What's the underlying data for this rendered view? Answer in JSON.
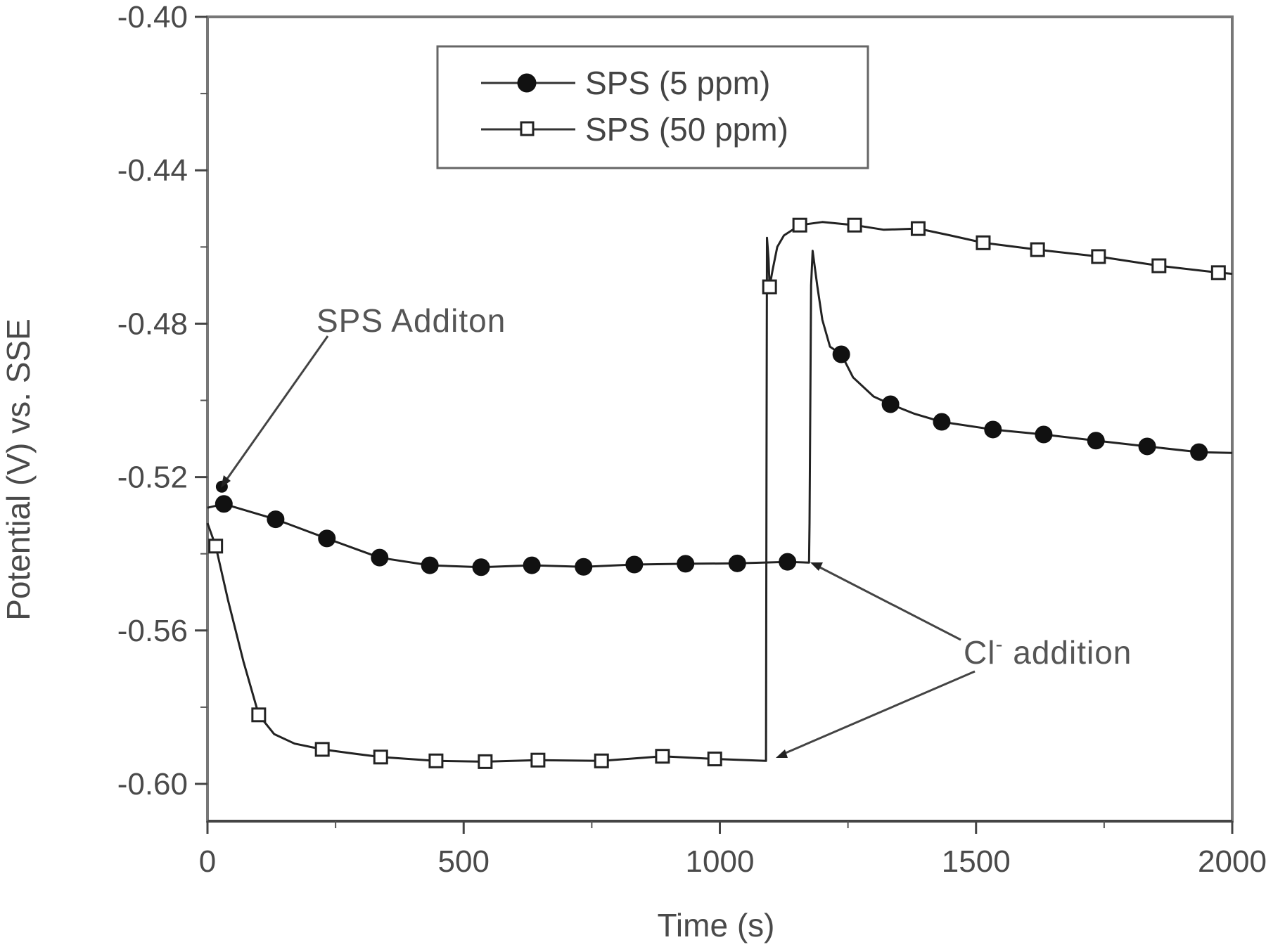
{
  "chart_data": {
    "type": "line",
    "title": "",
    "xlabel": "Time (s)",
    "ylabel": "Potential (V) vs. SSE",
    "xlim": [
      0,
      2000
    ],
    "ylim": [
      -0.61,
      -0.4
    ],
    "x_ticks": [
      0,
      500,
      1000,
      1500,
      2000
    ],
    "x_tick_labels": [
      "0",
      "500",
      "1000",
      "1500",
      "2000"
    ],
    "x_minor_step": 250,
    "y_ticks": [
      -0.4,
      -0.44,
      -0.48,
      -0.52,
      -0.56,
      -0.6
    ],
    "y_tick_labels": [
      "-0.40",
      "-0.44",
      "-0.48",
      "-0.52",
      "-0.56",
      "-0.60"
    ],
    "y_minor_step": 0.02,
    "grid": false,
    "legend_position": "upper center",
    "series": [
      {
        "name": "SPS (5 ppm)",
        "marker": "filled-circle",
        "line": [
          [
            0,
            -0.528
          ],
          [
            32,
            -0.527
          ],
          [
            133,
            -0.531
          ],
          [
            233,
            -0.536
          ],
          [
            336,
            -0.541
          ],
          [
            434,
            -0.543
          ],
          [
            534,
            -0.5435
          ],
          [
            633,
            -0.543
          ],
          [
            734,
            -0.5434
          ],
          [
            833,
            -0.5428
          ],
          [
            933,
            -0.5426
          ],
          [
            1034,
            -0.5425
          ],
          [
            1132,
            -0.5421
          ],
          [
            1174,
            -0.5423
          ],
          [
            1175,
            -0.532
          ],
          [
            1178,
            -0.47
          ],
          [
            1181,
            -0.461
          ],
          [
            1190,
            -0.47
          ],
          [
            1200,
            -0.479
          ],
          [
            1215,
            -0.486
          ],
          [
            1237,
            -0.488
          ],
          [
            1260,
            -0.494
          ],
          [
            1300,
            -0.499
          ],
          [
            1333,
            -0.501
          ],
          [
            1380,
            -0.5035
          ],
          [
            1433,
            -0.5056
          ],
          [
            1533,
            -0.5076
          ],
          [
            1632,
            -0.5089
          ],
          [
            1734,
            -0.5105
          ],
          [
            1834,
            -0.512
          ],
          [
            1935,
            -0.5135
          ],
          [
            2000,
            -0.5137
          ]
        ],
        "markers": [
          [
            32,
            -0.527
          ],
          [
            133,
            -0.531
          ],
          [
            233,
            -0.536
          ],
          [
            336,
            -0.541
          ],
          [
            434,
            -0.543
          ],
          [
            534,
            -0.5435
          ],
          [
            633,
            -0.543
          ],
          [
            734,
            -0.5434
          ],
          [
            833,
            -0.5428
          ],
          [
            933,
            -0.5426
          ],
          [
            1034,
            -0.5425
          ],
          [
            1132,
            -0.5421
          ],
          [
            1237,
            -0.488
          ],
          [
            1333,
            -0.501
          ],
          [
            1433,
            -0.5056
          ],
          [
            1533,
            -0.5076
          ],
          [
            1632,
            -0.5089
          ],
          [
            1734,
            -0.5105
          ],
          [
            1834,
            -0.512
          ],
          [
            1935,
            -0.5135
          ]
        ],
        "extra_markers": [
          [
            28,
            -0.5225
          ]
        ]
      },
      {
        "name": "SPS (50 ppm)",
        "marker": "open-square",
        "line": [
          [
            0,
            -0.532
          ],
          [
            16,
            -0.538
          ],
          [
            40,
            -0.552
          ],
          [
            70,
            -0.568
          ],
          [
            100,
            -0.582
          ],
          [
            130,
            -0.587
          ],
          [
            170,
            -0.5895
          ],
          [
            224,
            -0.591
          ],
          [
            280,
            -0.592
          ],
          [
            338,
            -0.593
          ],
          [
            446,
            -0.594
          ],
          [
            542,
            -0.5942
          ],
          [
            645,
            -0.5938
          ],
          [
            769,
            -0.594
          ],
          [
            888,
            -0.5928
          ],
          [
            990,
            -0.5935
          ],
          [
            1090,
            -0.594
          ],
          [
            1091,
            -0.52
          ],
          [
            1092,
            -0.4576
          ],
          [
            1095,
            -0.463
          ],
          [
            1097,
            -0.4704
          ],
          [
            1103,
            -0.466
          ],
          [
            1112,
            -0.46
          ],
          [
            1125,
            -0.457
          ],
          [
            1156,
            -0.4543
          ],
          [
            1200,
            -0.4535
          ],
          [
            1263,
            -0.4543
          ],
          [
            1320,
            -0.4555
          ],
          [
            1387,
            -0.4552
          ],
          [
            1450,
            -0.457
          ],
          [
            1514,
            -0.4589
          ],
          [
            1620,
            -0.4607
          ],
          [
            1739,
            -0.4625
          ],
          [
            1857,
            -0.4649
          ],
          [
            1973,
            -0.4667
          ],
          [
            2000,
            -0.467
          ]
        ],
        "markers": [
          [
            16,
            -0.538
          ],
          [
            100,
            -0.582
          ],
          [
            224,
            -0.591
          ],
          [
            338,
            -0.593
          ],
          [
            446,
            -0.594
          ],
          [
            542,
            -0.5942
          ],
          [
            645,
            -0.5938
          ],
          [
            769,
            -0.594
          ],
          [
            888,
            -0.5928
          ],
          [
            990,
            -0.5935
          ],
          [
            1097,
            -0.4704
          ],
          [
            1156,
            -0.4543
          ],
          [
            1263,
            -0.4543
          ],
          [
            1387,
            -0.4552
          ],
          [
            1514,
            -0.4589
          ],
          [
            1620,
            -0.4607
          ],
          [
            1739,
            -0.4625
          ],
          [
            1857,
            -0.4649
          ],
          [
            1973,
            -0.4667
          ]
        ]
      }
    ],
    "annotations": [
      {
        "text": "SPS Additon",
        "x": 210,
        "y": -0.4795,
        "arrow_to": [
          28,
          -0.5225
        ]
      },
      {
        "text": "Cl⁻ addition",
        "x": 1480,
        "y": -0.5655,
        "arrow_to": [
          [
            1175,
            -0.5435
          ],
          [
            1109,
            -0.5966
          ]
        ]
      }
    ]
  },
  "legend": {
    "items": [
      {
        "label": "SPS (5 ppm)",
        "marker": "filled-circle"
      },
      {
        "label": "SPS (50 ppm)",
        "marker": "open-square"
      }
    ]
  },
  "axes": {
    "xlabel": "Time (s)",
    "ylabel": "Potential (V) vs. SSE"
  },
  "annotations": {
    "sps_addition": "SPS Additon",
    "cl_addition_prefix": "Cl",
    "cl_addition_sup": "-",
    "cl_addition_suffix": " addition"
  }
}
